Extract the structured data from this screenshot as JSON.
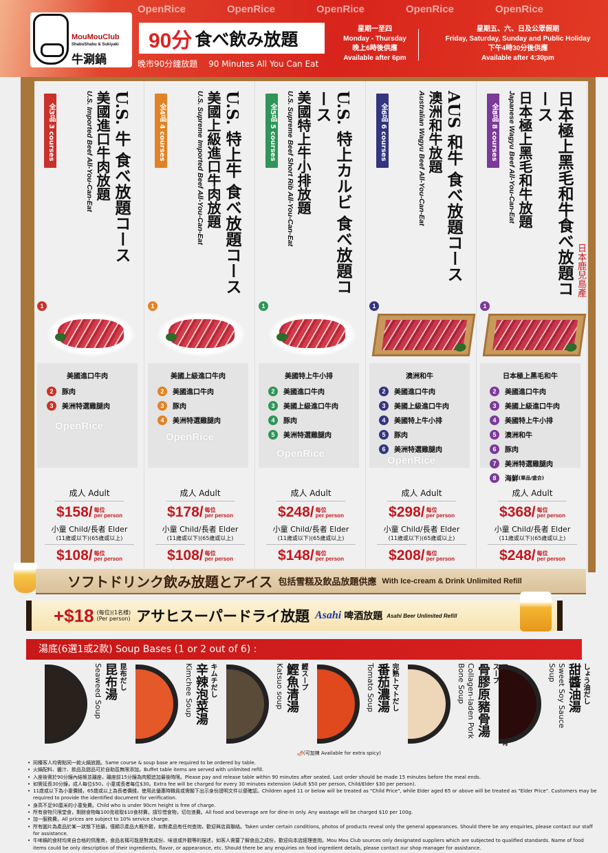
{
  "header": {
    "brand": "MouMouClub",
    "brand_sub": "ShabuShabu & Sukiyaki",
    "brand_cn": "牛涮鍋",
    "minutes": "90分",
    "title": "食べ飲み放題",
    "subtitle_cn": "晚市90分鐘放題",
    "subtitle_en": "90 Minutes All You Can Eat",
    "weekday": {
      "cn": "星期一至四",
      "en": "Monday - Thursday",
      "time_cn": "晚上6時後供應",
      "time_en": "Available after 6pm"
    },
    "weekend": {
      "cn": "星期五、六、日及公眾假期",
      "en": "Friday, Saturday, Sunday and Public Holiday",
      "time_cn": "下午4時30分後供應",
      "time_en": "Available after 4:30pm"
    }
  },
  "colors": {
    "course1": "#c8322a",
    "course2": "#e08326",
    "course3": "#2f9558",
    "course4": "#34357f",
    "course5": "#7b3a99",
    "price": "#c4161c",
    "header_red": "#d8241c"
  },
  "courses": [
    {
      "badge": "全3品 3 courses",
      "title": "U.S. 牛 食べ放題コース",
      "cn": "美國進口牛肉放題",
      "en": "U.S. Imported Beef All-You-Can-Eat",
      "image": "plate",
      "items": [
        "美國進口牛肉",
        "豚肉",
        "美洲特選雞腿肉"
      ],
      "adult_label": "成人 Adult",
      "adult_price": "$158",
      "per": "每位",
      "per_en": "per person",
      "child_label": "小童 Child/長者 Elder",
      "age_note": "(11歲或以下)(65歲或以上)",
      "child_price": "$108"
    },
    {
      "badge": "全4品 4 courses",
      "title": "U.S. 特上牛 食べ放題コース",
      "cn": "美國上級進口牛肉放題",
      "en": "U.S. Supreme Imported Beef All-You-Can-Eat",
      "image": "plate",
      "items": [
        "美國上級進口牛肉",
        "美國進口牛肉",
        "豚肉",
        "美洲特選雞腿肉"
      ],
      "adult_label": "成人 Adult",
      "adult_price": "$178",
      "per": "每位",
      "per_en": "per person",
      "child_label": "小童 Child/長者 Elder",
      "age_note": "(11歲或以下)(65歲或以上)",
      "child_price": "$108"
    },
    {
      "badge": "全5品 5 courses",
      "title": "U.S. 特上カルビ 食べ放題コース",
      "cn": "美國特上牛小排放題",
      "en": "U.S. Supreme Beef Short Rib All-You-Can-Eat",
      "image": "plate",
      "items": [
        "美國特上牛小排",
        "美國進口牛肉",
        "美國上級進口牛肉",
        "豚肉",
        "美洲特選雞腿肉"
      ],
      "adult_label": "成人 Adult",
      "adult_price": "$248",
      "per": "每位",
      "per_en": "per person",
      "child_label": "小童 Child/長者 Elder",
      "age_note": "(11歲或以下)(65歲或以上)",
      "child_price": "$148"
    },
    {
      "badge": "全6品 6 courses",
      "title": "AUS 和牛 食べ放題コース",
      "cn": "澳洲和牛放題",
      "en": "Australian Wagyu Beef All-You-Can-Eat",
      "image": "tray",
      "items": [
        "澳洲和牛",
        "美國進口牛肉",
        "美國上級進口牛肉",
        "美國特上牛小排",
        "豚肉",
        "美洲特選雞腿肉"
      ],
      "adult_label": "成人 Adult",
      "adult_price": "$298",
      "per": "每位",
      "per_en": "per person",
      "child_label": "小童 Child/長者 Elder",
      "age_note": "(11歲或以下)(65歲或以上)",
      "child_price": "$208"
    },
    {
      "badge": "全8品 8 courses",
      "title": "日本極上黑毛和牛食べ放題コース",
      "cn": "日本極上黑毛和牛放題",
      "en": "Japanese Wagyu Beef All-You-Can-Eat",
      "image": "tray",
      "origin": "日本鹿兒島產",
      "items": [
        "日本極上黑毛和牛",
        "美國進口牛肉",
        "美國上級進口牛肉",
        "美國特上牛小排",
        "澳洲和牛",
        "豚肉",
        "美洲特選雞腿肉",
        "海鮮"
      ],
      "item8_note": "(單品/盛合)",
      "adult_label": "成人 Adult",
      "adult_price": "$368",
      "per": "每位",
      "per_en": "per person",
      "child_label": "小童 Child/長者 Elder",
      "age_note": "(11歲或以下)(65歲或以上)",
      "child_price": "$248"
    }
  ],
  "drinks": {
    "jp": "ソフトドリンク飲み放題とアイス",
    "cn": "包括雪糕及飲品放題供應",
    "en": "With Ice-cream & Drink Unlimited Refill"
  },
  "beer": {
    "price": "+$18",
    "per_cn": "(每位)(1名様)",
    "per_en": "(Per person)",
    "jp": "アサヒスーパードライ放題",
    "brand": "Asahi",
    "cn": "啤酒放題",
    "en": "Asahi Beer Unlimited Refill"
  },
  "soups": {
    "heading": "湯底(6選1或2款) Soup Bases (1 or 2 out of 6) :",
    "items": [
      {
        "jp": "昆布だし",
        "cn": "昆布湯",
        "en": "Seaweed Soup",
        "color": "#2a211d"
      },
      {
        "jp": "キムチだし",
        "cn": "辛辣泡菜湯",
        "en": "Kimchee Soup",
        "color": "#e4582a"
      },
      {
        "jp": "鰹スープ",
        "cn": "鰹魚清湯",
        "en": "Katsuo soup",
        "color": "#5a4a38"
      },
      {
        "jp": "完熟トマトだし",
        "cn": "番茄濃湯",
        "en": "Tomato Soup",
        "color": "#e0481e"
      },
      {
        "jp": "コラーゲンたっぷりな豚骨スープ",
        "cn": "骨膠原豬骨湯",
        "en": "Collagen-laden Pork Bone Soup",
        "color": "#eed6b8"
      },
      {
        "jp": "しょう油だし",
        "cn": "甜醬油湯",
        "en": "Sweet Soy Sauce Soup",
        "color": "#2a0a0a"
      }
    ],
    "spicy_note_cn": "(可加辣",
    "spicy_note_en": "Available for extra spicy)"
  },
  "notes": [
    "同檯客人均需點同一款火鍋放題。Same course & soup base are required to be ordered by table.",
    "火鍋配料、醬汁、飲品及甜品可於自助區無限添加。Buffet table items are served with unlimited refill.",
    "入座後需於90分鐘內結帳並離座，離座前15分鐘為肉類追加最後時限。Please pay and release table within 90 minutes after seated. Last order should be made 15 minutes before the meal ends.",
    "如需延長30分鐘，成人每位$50，小童或長者每位$30。Extra fee will be charged for every 30 minutes extension (Adult $50 per person, Child/Elder $30 per person).",
    "11歲或以下為小童價錢，65歲或以上為長者價錢，使用此優惠時職員或需閣下出示身份證明文件以便確認。Children aged 11 or below will be treated as \"Child Price\", while Elder aged 65 or above will be treated as \"Elder Price\". Customers may be required to provide the identified document for verification.",
    "身高不足90厘米的小童免費。Child who is under 90cm height is free of charge.",
    "所有食物只限堂食，剩餘食物每100克收取$10食材費，請珍惜食物，切勿浪費。All food and beverage are for dine-in only. Any wastage will be charged $10 per 100g.",
    "加一服務費。All prices are subject to 10% service charge.",
    "所有圖片為產品於某一狀態下拍攝，僅顯示產品大概外觀，如對產品有任何查詢，歡迎與店員聯絡。Taken under certain conditions, photos of products reveal only the general appearances. Should there be any enquiries, please contact our staff for assistance.",
    "牛哞鍋的食材均來自合格的供應商，食品名稱可能是對其成份、味道或外觀等的描述，如客人需要了解食品之成份，歡迎向本店經理查詢。Mou Mou Club sources only designated suppliers which are subjected to qualified standards. Name of food items could be only description of their ingredients, flavor, or appearance, etc. Should there be any enquiries on food ingredient details, please contact our shop manager for assistance."
  ],
  "watermark": "OpenRice"
}
